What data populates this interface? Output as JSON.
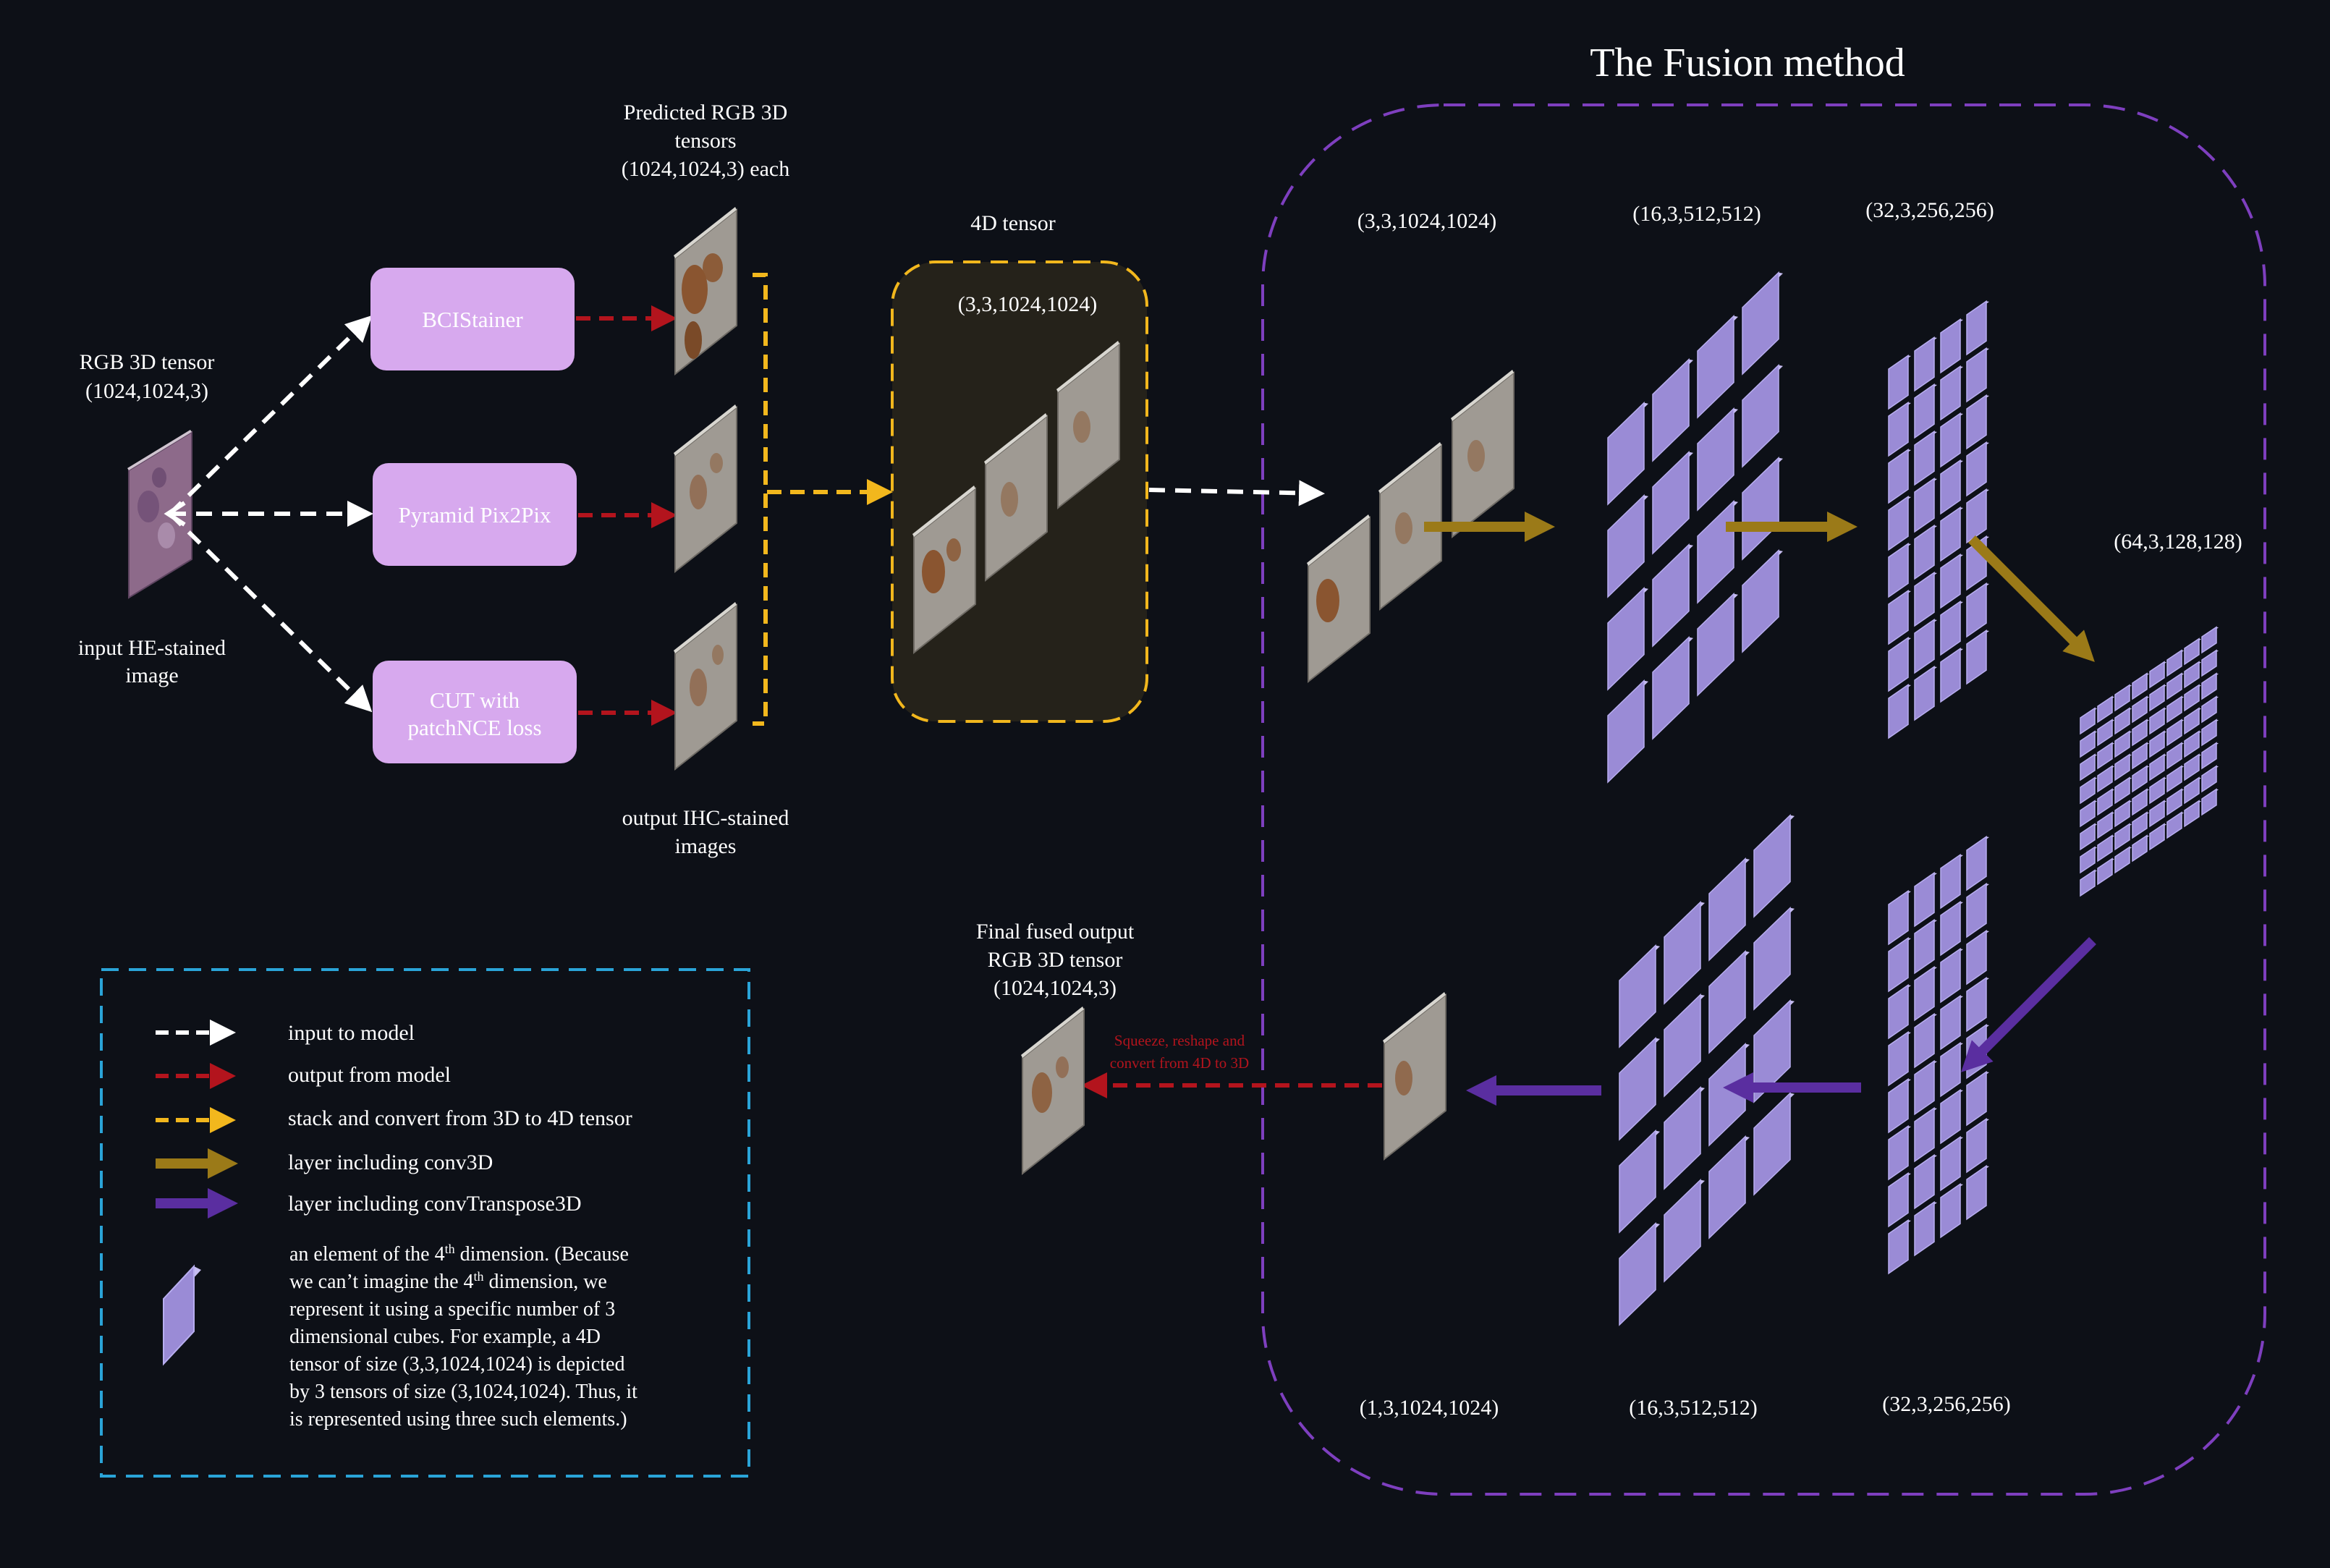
{
  "colors": {
    "background": "#0d1017",
    "model_box": "#d7a9ee",
    "model_text": "#ffffff",
    "input_arrow": "#ffffff",
    "output_arrow": "#b3141d",
    "stack_arrow": "#f2b71d",
    "conv3d_arrow": "#9b7a18",
    "convtranspose_arrow": "#5a2ea0",
    "fusion_border": "#7e3fbf",
    "legend_border": "#2aa4d8",
    "tensor_box_fill": "#25221a",
    "cube_face": "#9a8bd6",
    "cube_side": "#c6bdf0",
    "slice_face": "#9f9a93",
    "slice_side": "#d8d6d0",
    "tissue": "#8a5530",
    "he_face": "#8d6a8a"
  },
  "title": "The Fusion method",
  "input": {
    "top_label_1": "RGB 3D tensor",
    "top_label_2": "(1024,1024,3)",
    "bottom_label_1": "input HE-stained",
    "bottom_label_2": "image"
  },
  "models": {
    "bci": "BCIStainer",
    "pyramid": "Pyramid Pix2Pix",
    "cut_1": "CUT with",
    "cut_2": "patchNCE loss"
  },
  "predicted": {
    "label_1": "Predicted RGB 3D",
    "label_2": "tensors",
    "label_3": "(1024,1024,3) each",
    "bottom_1": "output IHC-stained",
    "bottom_2": "images"
  },
  "tensor4d": {
    "title": "4D tensor",
    "shape": "(3,3,1024,1024)"
  },
  "fusion": {
    "enc_1": "(3,3,1024,1024)",
    "enc_2": "(16,3,512,512)",
    "enc_3": "(32,3,256,256)",
    "bottleneck": "(64,3,128,128)",
    "dec_3": "(32,3,256,256)",
    "dec_2": "(16,3,512,512)",
    "dec_1": "(1,3,1024,1024)",
    "squeeze_1": "Squeeze, reshape and",
    "squeeze_2": "convert from 4D to 3D"
  },
  "final": {
    "label_1": "Final fused output",
    "label_2": "RGB 3D tensor",
    "label_3": "(1024,1024,3)"
  },
  "legend": {
    "input": "input to model",
    "output": "output from model",
    "stack": "stack and convert from 3D to 4D tensor",
    "conv3d": "layer including conv3D",
    "convtranspose": "layer including convTranspose3D",
    "element_1a": "an element of the 4",
    "element_sup": "th",
    "element_1b": " dimension. (Because",
    "element_2a": "we can’t imagine the 4",
    "element_2b": " dimension, we",
    "element_3": "represent it using a specific number of 3",
    "element_4": "dimensional cubes. For example, a 4D",
    "element_5": "tensor of size (3,3,1024,1024) is depicted",
    "element_6": "by 3 tensors of size (3,1024,1024). Thus, it",
    "element_7": "is represented using three such elements.)"
  }
}
